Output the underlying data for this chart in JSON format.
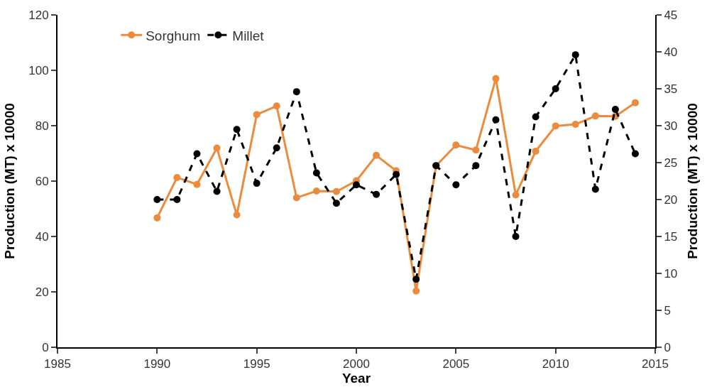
{
  "chart_data": {
    "type": "line",
    "xlabel": "Year",
    "ylabel": "Production (MT) x 10000",
    "y2label": "Production (MT) x 10000",
    "x": [
      1990,
      1991,
      1992,
      1993,
      1994,
      1995,
      1996,
      1997,
      1998,
      1999,
      2000,
      2001,
      2002,
      2003,
      2004,
      2005,
      2006,
      2007,
      2008,
      2009,
      2010,
      2011,
      2012,
      2013,
      2014
    ],
    "series": [
      {
        "name": "Sorghum",
        "color": "#ed8b3c",
        "line_style": "solid",
        "values": [
          46.7,
          61.3,
          58.8,
          71.9,
          47.8,
          84.0,
          87.1,
          54.0,
          56.4,
          56.2,
          60.1,
          69.3,
          63.7,
          20.3,
          65.5,
          73.0,
          71.2,
          97.0,
          55.0,
          70.8,
          79.9,
          80.5,
          83.5,
          83.4,
          88.3
        ]
      },
      {
        "name": "Millet",
        "color": "#000000",
        "line_style": "dashed",
        "axis": "y2",
        "values": [
          20.0,
          20.0,
          26.2,
          21.1,
          29.5,
          22.2,
          27.0,
          34.6,
          23.6,
          19.5,
          22.0,
          20.7,
          23.4,
          9.2,
          24.6,
          22.0,
          24.6,
          30.8,
          15.0,
          31.2,
          35.0,
          39.6,
          21.4,
          32.2,
          26.2
        ]
      }
    ],
    "xlim": [
      1985,
      2015
    ],
    "xticks": [
      1985,
      1990,
      1995,
      2000,
      2005,
      2010,
      2015
    ],
    "ylim": [
      0,
      120
    ],
    "yticks": [
      0,
      20,
      40,
      60,
      80,
      100,
      120
    ],
    "y2lim": [
      0,
      45
    ],
    "y2ticks": [
      0,
      5,
      10,
      15,
      20,
      25,
      30,
      35,
      40,
      45
    ],
    "marker": "circle",
    "legend": "top left"
  }
}
